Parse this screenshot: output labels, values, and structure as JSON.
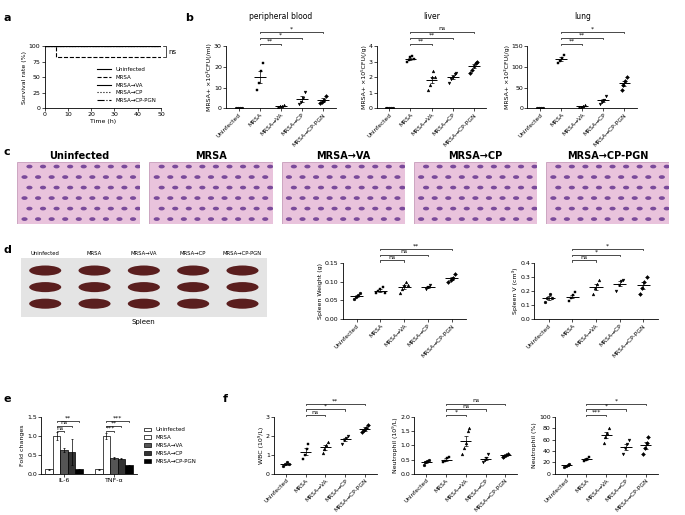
{
  "chart_data": [
    {
      "panel": "a",
      "type": "line",
      "xlabel": "Time (h)",
      "ylabel": "Survival rate (%)",
      "xlim": [
        0,
        50
      ],
      "xticks": [
        0,
        10,
        20,
        30,
        40,
        50
      ],
      "ylim": [
        0,
        100
      ],
      "yticks": [
        0,
        25,
        50,
        75,
        100
      ],
      "legend": "lower right",
      "annotation": "ns",
      "series": [
        {
          "name": "Uninfected",
          "line_style": "solid",
          "x": [
            0,
            50
          ],
          "values": [
            100,
            100
          ]
        },
        {
          "name": "MRSA",
          "line_style": "dashed",
          "x": [
            0,
            5,
            5,
            50
          ],
          "values": [
            100,
            100,
            83,
            83
          ]
        },
        {
          "name": "MRSA→VA",
          "line_style": "solid",
          "x": [
            0,
            50
          ],
          "values": [
            100,
            100
          ]
        },
        {
          "name": "MRSA→CP",
          "line_style": "dotted",
          "x": [
            0,
            50
          ],
          "values": [
            100,
            100
          ]
        },
        {
          "name": "MRSA→CP-PGN",
          "line_style": "dashdot",
          "x": [
            0,
            50
          ],
          "values": [
            100,
            100
          ]
        }
      ]
    },
    {
      "panel": "b",
      "type": "scatter",
      "title": "peripheral blood",
      "ylabel": "MRSA+ ×10³CFU(/ml)",
      "categories": [
        "Uninfected",
        "MRSA",
        "MRSA→VA",
        "MRSA→CP",
        "MRSA→CP-PGN"
      ],
      "ylim": [
        0,
        30
      ],
      "yticks": [
        0,
        10,
        20,
        30
      ],
      "values": [
        [
          0.1,
          0.2,
          0.1,
          0.1
        ],
        [
          9,
          12,
          18,
          22
        ],
        [
          0.8,
          1.2,
          1,
          1.5
        ],
        [
          2,
          3,
          5,
          8
        ],
        [
          2.5,
          3,
          4,
          6
        ]
      ],
      "means": [
        0.1,
        15.2,
        1.1,
        4.5,
        3.9
      ],
      "errors": [
        0.03,
        3,
        0.15,
        1.3,
        0.8
      ],
      "comparisons": [
        {
          "from": 1,
          "to": 2,
          "label": "**"
        },
        {
          "from": 1,
          "to": 3,
          "label": "*"
        },
        {
          "from": 1,
          "to": 4,
          "label": "*"
        }
      ]
    },
    {
      "panel": "b",
      "type": "scatter",
      "title": "liver",
      "ylabel": "MRSA+ ×10⁵CFU(/g)",
      "categories": [
        "Uninfected",
        "MRSA",
        "MRSA→VA",
        "MRSA→CP",
        "MRSA→CP-PGN"
      ],
      "ylim": [
        0,
        4
      ],
      "yticks": [
        0,
        1,
        2,
        3,
        4
      ],
      "values": [
        [
          0.02,
          0.02,
          0.03,
          0.02,
          0.02
        ],
        [
          3.0,
          3.1,
          3.3,
          3.4,
          3.2
        ],
        [
          1.2,
          1.5,
          2.0,
          2.4,
          2.0
        ],
        [
          1.6,
          1.9,
          2.0,
          2.2,
          2.3
        ],
        [
          2.3,
          2.5,
          2.7,
          2.9,
          3.0
        ]
      ],
      "means": [
        0.02,
        3.2,
        1.8,
        2.0,
        2.7
      ],
      "errors": [
        0.01,
        0.07,
        0.2,
        0.12,
        0.13
      ],
      "comparisons": [
        {
          "from": 1,
          "to": 2,
          "label": "**"
        },
        {
          "from": 1,
          "to": 3,
          "label": "**"
        },
        {
          "from": 1,
          "to": 4,
          "label": "ns"
        }
      ]
    },
    {
      "panel": "b",
      "type": "scatter",
      "title": "lung",
      "ylabel": "MRSA+ ×10³CFU(/g)",
      "categories": [
        "Uninfected",
        "MRSA",
        "MRSA→VA",
        "MRSA→CP",
        "MRSA→CP-PGN"
      ],
      "ylim": [
        0,
        150
      ],
      "yticks": [
        0,
        50,
        100,
        150
      ],
      "values": [
        [
          0.5,
          0.5,
          0.6,
          0.4
        ],
        [
          110,
          115,
          122,
          128
        ],
        [
          2,
          4,
          6,
          8
        ],
        [
          10,
          15,
          20,
          30
        ],
        [
          45,
          55,
          65,
          75
        ]
      ],
      "means": [
        0.5,
        119,
        5,
        19,
        60
      ],
      "errors": [
        0.1,
        4,
        1.3,
        4,
        6.5
      ],
      "comparisons": [
        {
          "from": 1,
          "to": 2,
          "label": "**"
        },
        {
          "from": 1,
          "to": 3,
          "label": "**"
        },
        {
          "from": 1,
          "to": 4,
          "label": "*"
        }
      ]
    },
    {
      "panel": "d",
      "type": "scatter",
      "ylabel": "Spleen Weight (g)",
      "categories": [
        "Uninfected",
        "MRSA",
        "MRSA→VA",
        "MRSA→CP",
        "MRSA→CP-PGN"
      ],
      "ylim": [
        0,
        0.15
      ],
      "yticks": [
        {
          "value": 0,
          "label": "0.00"
        },
        0.05,
        {
          "value": 0.1,
          "label": "0.10"
        },
        0.15
      ],
      "values": [
        [
          0.055,
          0.06,
          0.065,
          0.07
        ],
        [
          0.07,
          0.075,
          0.08,
          0.085,
          0.07
        ],
        [
          0.07,
          0.08,
          0.09,
          0.1,
          0.09
        ],
        [
          0.08,
          0.085,
          0.09
        ],
        [
          0.1,
          0.105,
          0.11,
          0.12
        ]
      ],
      "means": [
        0.062,
        0.076,
        0.086,
        0.085,
        0.109
      ],
      "errors": [
        0.003,
        0.003,
        0.005,
        0.003,
        0.004
      ],
      "comparisons": [
        {
          "from": 1,
          "to": 2,
          "label": "ns"
        },
        {
          "from": 1,
          "to": 3,
          "label": "ns"
        },
        {
          "from": 1,
          "to": 4,
          "label": "**"
        }
      ]
    },
    {
      "panel": "d",
      "type": "scatter",
      "ylabel": "Spleen V (cm³)",
      "categories": [
        "Uninfected",
        "MRSA",
        "MRSA→VA",
        "MRSA→CP",
        "MRSA→CP-PGN"
      ],
      "ylim": [
        0,
        0.4
      ],
      "yticks": [
        {
          "value": 0,
          "label": "0.0"
        },
        0.1,
        0.2,
        0.3,
        0.4
      ],
      "values": [
        [
          0.12,
          0.15,
          0.18,
          0.15
        ],
        [
          0.13,
          0.15,
          0.17,
          0.19
        ],
        [
          0.18,
          0.22,
          0.25,
          0.28
        ],
        [
          0.2,
          0.24,
          0.27,
          0.28
        ],
        [
          0.18,
          0.22,
          0.26,
          0.3
        ]
      ],
      "means": [
        0.15,
        0.16,
        0.23,
        0.25,
        0.24
      ],
      "errors": [
        0.012,
        0.013,
        0.02,
        0.018,
        0.026
      ],
      "comparisons": [
        {
          "from": 1,
          "to": 2,
          "label": "ns"
        },
        {
          "from": 1,
          "to": 3,
          "label": "*"
        },
        {
          "from": 1,
          "to": 4,
          "label": "*"
        }
      ]
    },
    {
      "panel": "e",
      "type": "bar",
      "ylabel": "Fold changes",
      "categories": [
        "IL-6",
        "TNF-α"
      ],
      "ylim": [
        0,
        1.5
      ],
      "yticks": [
        {
          "value": 0,
          "label": "0.0"
        },
        0.5,
        {
          "value": 1,
          "label": "1.0"
        },
        1.5
      ],
      "legend": "center left",
      "series": [
        {
          "name": "Uninfected",
          "color": "#ffffff",
          "values": [
            0.12,
            0.12
          ],
          "errors": [
            0.01,
            0.01
          ]
        },
        {
          "name": "MRSA",
          "color": "#ffffff",
          "values": [
            1.0,
            1.0
          ],
          "errors": [
            0.1,
            0.08
          ]
        },
        {
          "name": "MRSA→VA",
          "color": "#555555",
          "values": [
            0.62,
            0.42
          ],
          "errors": [
            0.05,
            0.03
          ]
        },
        {
          "name": "MRSA→CP",
          "color": "#333333",
          "values": [
            0.58,
            0.4
          ],
          "errors": [
            0.35,
            0.02
          ]
        },
        {
          "name": "MRSA→CP-PGN",
          "color": "#000000",
          "values": [
            0.12,
            0.22
          ],
          "errors": [
            0.01,
            0.01
          ]
        }
      ],
      "comparisons": [
        {
          "category": 0,
          "from": 1,
          "to": 2,
          "label": "ns"
        },
        {
          "category": 0,
          "from": 1,
          "to": 3,
          "label": "ns"
        },
        {
          "category": 0,
          "from": 1,
          "to": 4,
          "label": "**"
        },
        {
          "category": 1,
          "from": 1,
          "to": 2,
          "label": "***"
        },
        {
          "category": 1,
          "from": 1,
          "to": 3,
          "label": "**"
        },
        {
          "category": 1,
          "from": 1,
          "to": 4,
          "label": "***"
        }
      ]
    },
    {
      "panel": "f",
      "type": "scatter",
      "ylabel": "WBC (10⁹/L)",
      "categories": [
        "Uninfected",
        "MRSA",
        "MRSA→VA",
        "MRSA→CP",
        "MRSA→CP-PGN"
      ],
      "ylim": [
        0,
        3
      ],
      "yticks": [
        0,
        1,
        2,
        3
      ],
      "values": [
        [
          0.4,
          0.5,
          0.6,
          0.5
        ],
        [
          0.8,
          1.0,
          1.3,
          1.6
        ],
        [
          1.1,
          1.3,
          1.5,
          1.7
        ],
        [
          1.6,
          1.8,
          1.9,
          2.0
        ],
        [
          2.2,
          2.3,
          2.4,
          2.6
        ]
      ],
      "means": [
        0.5,
        1.18,
        1.4,
        1.83,
        2.38
      ],
      "errors": [
        0.04,
        0.17,
        0.13,
        0.09,
        0.09
      ],
      "comparisons": [
        {
          "from": 1,
          "to": 2,
          "label": "ns"
        },
        {
          "from": 1,
          "to": 3,
          "label": "*"
        },
        {
          "from": 1,
          "to": 4,
          "label": "**"
        }
      ]
    },
    {
      "panel": "f",
      "type": "scatter",
      "ylabel": "Neutrophil (10⁹/L)",
      "categories": [
        "Uninfected",
        "MRSA",
        "MRSA→VA",
        "MRSA→CP",
        "MRSA→CP-PGN"
      ],
      "ylim": [
        0,
        2
      ],
      "yticks": [
        {
          "value": 0,
          "label": "0.0"
        },
        0.5,
        {
          "value": 1,
          "label": "1.0"
        },
        1.5,
        {
          "value": 2,
          "label": "2.0"
        }
      ],
      "values": [
        [
          0.3,
          0.4,
          0.45,
          0.5
        ],
        [
          0.4,
          0.45,
          0.55,
          0.6
        ],
        [
          0.7,
          0.9,
          1.1,
          1.5,
          1.6
        ],
        [
          0.4,
          0.5,
          0.55,
          0.7
        ],
        [
          0.6,
          0.62,
          0.68,
          0.7
        ]
      ],
      "means": [
        0.41,
        0.5,
        1.16,
        0.54,
        0.65
      ],
      "errors": [
        0.04,
        0.05,
        0.17,
        0.06,
        0.02
      ],
      "comparisons": [
        {
          "from": 1,
          "to": 2,
          "label": "*"
        },
        {
          "from": 1,
          "to": 3,
          "label": "ns"
        },
        {
          "from": 1,
          "to": 4,
          "label": "ns"
        }
      ]
    },
    {
      "panel": "f",
      "type": "scatter",
      "ylabel": "Neutrophil (%)",
      "categories": [
        "Uninfected",
        "MRSA",
        "MRSA→VA",
        "MRSA→CP",
        "MRSA→CP-PGN"
      ],
      "ylim": [
        0,
        100
      ],
      "yticks": [
        0,
        20,
        40,
        60,
        80,
        100
      ],
      "values": [
        [
          12,
          14,
          16,
          18
        ],
        [
          22,
          25,
          27,
          30
        ],
        [
          55,
          65,
          72,
          80
        ],
        [
          35,
          45,
          52,
          60
        ],
        [
          35,
          45,
          55,
          65
        ]
      ],
      "means": [
        15,
        26,
        68,
        48,
        50
      ],
      "errors": [
        1.3,
        1.7,
        5.2,
        5.3,
        6.5
      ],
      "comparisons": [
        {
          "from": 1,
          "to": 2,
          "label": "***"
        },
        {
          "from": 1,
          "to": 3,
          "label": "*"
        },
        {
          "from": 1,
          "to": 4,
          "label": "*"
        }
      ]
    }
  ],
  "images": [
    {
      "panel": "c",
      "titles": [
        "Uninfected",
        "MRSA",
        "MRSA→VA",
        "MRSA→CP",
        "MRSA→CP-PGN"
      ]
    },
    {
      "panel": "d",
      "headers": [
        "Uninfected",
        "MRSA",
        "MRSA→VA",
        "MRSA→CP",
        "MRSA→CP-PGN"
      ],
      "caption": "Spleen"
    }
  ]
}
